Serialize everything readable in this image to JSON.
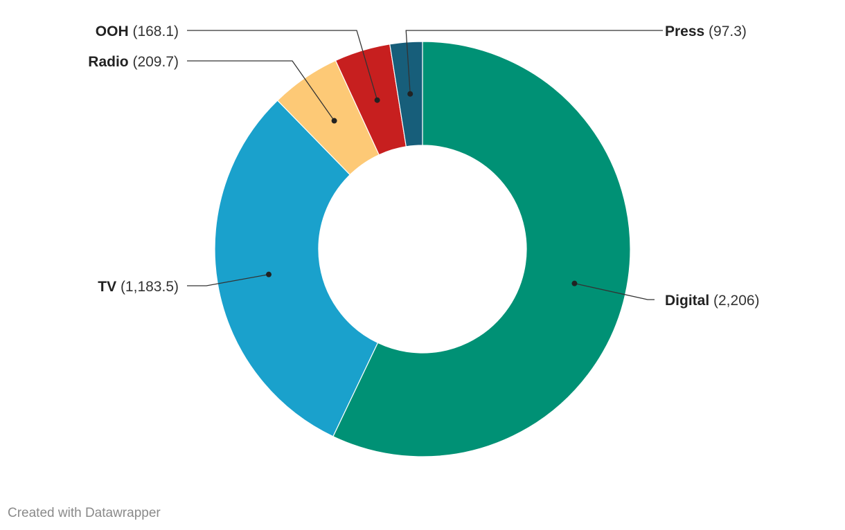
{
  "chart_data": {
    "type": "pie",
    "variant": "donut",
    "title": "",
    "categories": [
      "Digital",
      "TV",
      "Radio",
      "OOH",
      "Press"
    ],
    "values": [
      2206,
      1183.5,
      209.7,
      168.1,
      97.3
    ],
    "value_labels": [
      "2,206",
      "1,183.5",
      "209.7",
      "168.1",
      "97.3"
    ],
    "colors": [
      "#009175",
      "#1aa1cc",
      "#fdc976",
      "#c71f1f",
      "#175e7a"
    ]
  },
  "footer": {
    "credit": "Created with Datawrapper"
  }
}
